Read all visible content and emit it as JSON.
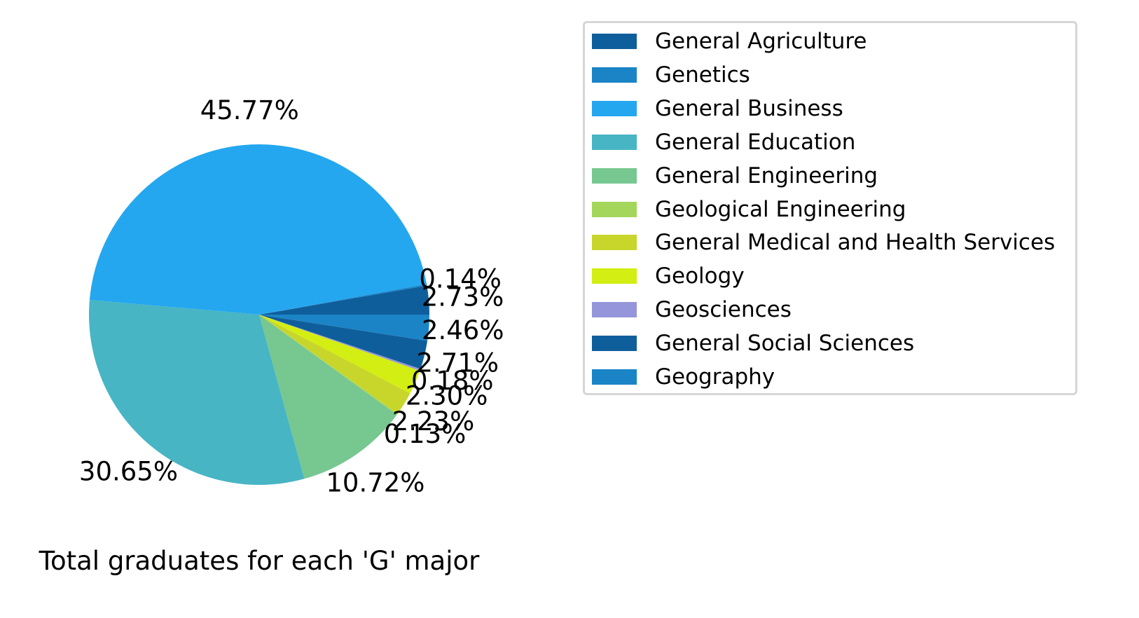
{
  "chart_data": {
    "type": "pie",
    "title": "Total graduates for each 'G' major",
    "categories": [
      "General Agriculture",
      "Genetics",
      "General Business",
      "General Education",
      "General Engineering",
      "Geological Engineering",
      "General Medical and Health Services",
      "Geology",
      "Geosciences",
      "General Social Sciences",
      "Geography"
    ],
    "values": [
      2.73,
      0.14,
      45.77,
      30.65,
      10.72,
      0.13,
      2.23,
      2.3,
      0.18,
      2.71,
      2.46
    ],
    "labels": [
      "2.73%",
      "0.14%",
      "45.77%",
      "30.65%",
      "10.72%",
      "0.13%",
      "2.23%",
      "2.30%",
      "0.18%",
      "2.71%",
      "2.46%"
    ],
    "colors": [
      "#0f5e9c",
      "#1a84c6",
      "#24a7ef",
      "#47b5c4",
      "#77c791",
      "#a5d65c",
      "#c8d62b",
      "#d3ee12",
      "#9595dc",
      "#0f5e9c",
      "#1a84c6"
    ],
    "legend_placement": "right",
    "start_angle": 0,
    "direction": "counterclockwise"
  }
}
